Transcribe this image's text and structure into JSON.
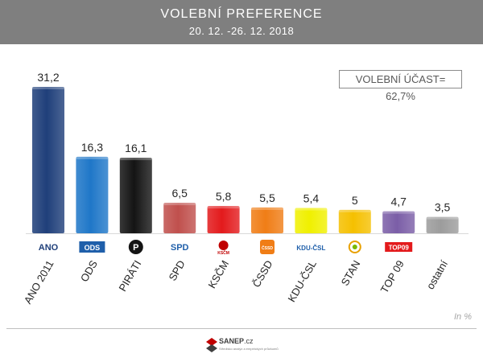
{
  "header": {
    "title": "VOLEBNÍ PREFERENCE",
    "subtitle": "20. 12. -26. 12. 2018"
  },
  "turnout_label": "VOLEBNÍ ÚČAST= 62,7%",
  "unit_label": "In %",
  "footer": {
    "brand": "SANEP",
    "brand_suffix": ".cz",
    "tagline": "Středisko analýz a empirických průzkumů"
  },
  "chart_data": {
    "type": "bar",
    "title": "VOLEBNÍ PREFERENCE",
    "subtitle": "20. 12. -26. 12. 2018",
    "categories": [
      "ANO 2011",
      "ODS",
      "PIRÁTI",
      "SPD",
      "KSČM",
      "ČSSD",
      "KDU-ČSL",
      "STAN",
      "TOP 09",
      "ostatní"
    ],
    "values": [
      31.2,
      16.3,
      16.1,
      6.5,
      5.8,
      5.5,
      5.4,
      5,
      4.7,
      3.5
    ],
    "value_labels": [
      "31,2",
      "16,3",
      "16,1",
      "6,5",
      "5,8",
      "5,5",
      "5,4",
      "5",
      "4,7",
      "3,5"
    ],
    "colors": [
      "#1f3f7a",
      "#1f77c8",
      "#141414",
      "#c0504d",
      "#e31a1c",
      "#f07d16",
      "#f0f000",
      "#f5c000",
      "#7b5ea7",
      "#9c9c9c"
    ],
    "logos": [
      {
        "text": "ANO",
        "color": "#1f3f7a"
      },
      {
        "text": "ODS",
        "color": "#1f5faa"
      },
      {
        "text": "P",
        "color": "#141414"
      },
      {
        "text": "SPD",
        "color": "#1f5faa"
      },
      {
        "text": "KSČM",
        "color": "#c00000"
      },
      {
        "text": "ČSSD",
        "color": "#f07d16"
      },
      {
        "text": "KDU-ČSL",
        "color": "#1f5faa"
      },
      {
        "text": "STAN",
        "color": "#e8a000"
      },
      {
        "text": "TOP09",
        "color": "#e31a1c"
      },
      {
        "text": "",
        "color": "#ffffff"
      }
    ],
    "ylim": [
      0,
      31.2
    ],
    "grid": false,
    "legend": "none",
    "xlabel": "",
    "ylabel": ""
  }
}
